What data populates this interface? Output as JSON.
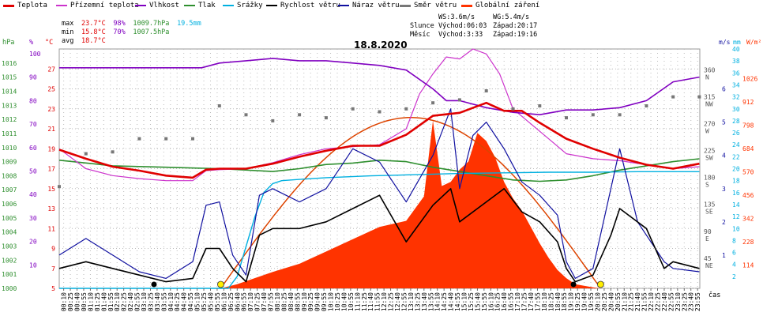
{
  "legend": [
    {
      "label": "Teplota",
      "color": "#e00000"
    },
    {
      "label": "Přízemní teplota",
      "color": "#cc33cc"
    },
    {
      "label": "Vlhkost",
      "color": "#8000c0"
    },
    {
      "label": "Tlak",
      "color": "#2f8f2f"
    },
    {
      "label": "Srážky",
      "color": "#00b0e0"
    },
    {
      "label": "Rychlost větru",
      "color": "#000000"
    },
    {
      "label": "Náraz větru",
      "color": "#1010a0"
    },
    {
      "label": "Směr větru",
      "color": "#777777"
    },
    {
      "label": "Globální záření",
      "color": "#ff3300"
    }
  ],
  "stats": {
    "max_label": "max",
    "max_temp": "23.7°C",
    "max_hum": "98%",
    "max_press": "1009.7hPa",
    "max_rain": "19.5mm",
    "min_label": "min",
    "min_temp": "15.8°C",
    "min_hum": "70%",
    "min_press": "1007.5hPa",
    "avg_label": "avg",
    "avg_temp": "18.7°C"
  },
  "info": {
    "ws": "WS:3.6m/s",
    "wg": "WG:5.4m/s",
    "sun_label": "Slunce",
    "sun_rise": "Východ:06:03",
    "sun_set": "Západ:20:17",
    "moon_label": "Měsíc",
    "moon_rise": "Východ:3:33",
    "moon_set": "Západ:19:16"
  },
  "title": "18.8.2020",
  "axis_headers": {
    "hpa": "hPa",
    "pct": "%",
    "degc": "°C",
    "ms": "m/s",
    "mm": "mm",
    "wm2": "W/m²",
    "time": "čas"
  },
  "colors": {
    "axis_hpa": "#2f8f2f",
    "axis_pct": "#8000c0",
    "axis_degc": "#e00000",
    "axis_ms": "#1010a0",
    "axis_mm": "#00b0e0",
    "axis_wm2": "#ff3300",
    "grid": "#bbbbbb"
  },
  "chart_data": {
    "type": "line",
    "title": "18.8.2020",
    "x_unit": "minutes since 00:00",
    "x_ticks": [
      "00:10",
      "00:25",
      "00:40",
      "00:55",
      "01:10",
      "01:25",
      "01:40",
      "01:55",
      "02:10",
      "02:25",
      "02:40",
      "02:55",
      "03:10",
      "03:25",
      "03:40",
      "03:55",
      "04:10",
      "04:25",
      "04:40",
      "04:55",
      "05:10",
      "05:25",
      "05:40",
      "05:55",
      "06:10",
      "06:25",
      "06:40",
      "06:55",
      "07:10",
      "07:25",
      "07:40",
      "07:55",
      "08:10",
      "08:25",
      "08:40",
      "08:55",
      "09:10",
      "09:25",
      "09:40",
      "09:55",
      "10:10",
      "10:25",
      "10:40",
      "10:55",
      "11:10",
      "11:25",
      "11:40",
      "11:55",
      "12:10",
      "12:25",
      "12:40",
      "12:55",
      "13:10",
      "13:25",
      "13:40",
      "13:55",
      "14:10",
      "14:25",
      "14:40",
      "14:55",
      "15:10",
      "15:25",
      "15:40",
      "15:55",
      "16:10",
      "16:25",
      "16:40",
      "16:55",
      "17:10",
      "17:25",
      "17:40",
      "17:55",
      "18:10",
      "18:25",
      "18:40",
      "18:55",
      "19:10",
      "19:25",
      "19:40",
      "19:55",
      "20:10",
      "20:25",
      "20:40",
      "20:55",
      "21:10",
      "21:25",
      "21:40",
      "21:55",
      "22:10",
      "22:25",
      "22:40",
      "22:55",
      "23:10",
      "23:25",
      "23:40",
      "23:55"
    ],
    "axes": {
      "hpa": {
        "range": [
          1000,
          1017
        ],
        "ticks": [
          1000,
          1001,
          1002,
          1003,
          1004,
          1005,
          1006,
          1007,
          1008,
          1009,
          1010,
          1011,
          1012,
          1013,
          1014,
          1015,
          1016
        ]
      },
      "pct": {
        "range": [
          0,
          102
        ],
        "ticks": [
          10,
          20,
          30,
          40,
          50,
          60,
          70,
          80,
          90,
          100
        ]
      },
      "degc": {
        "range": [
          5,
          29
        ],
        "ticks": [
          5,
          7,
          9,
          11,
          13,
          15,
          17,
          19,
          21,
          23,
          25,
          27
        ]
      },
      "dir": {
        "range": [
          0,
          400
        ],
        "ticks": [
          {
            "v": 45,
            "l": "45",
            "c": "NE"
          },
          {
            "v": 90,
            "l": "90",
            "c": "E"
          },
          {
            "v": 135,
            "l": "135",
            "c": "SE"
          },
          {
            "v": 180,
            "l": "180",
            "c": "S"
          },
          {
            "v": 225,
            "l": "225",
            "c": "SW"
          },
          {
            "v": 270,
            "l": "270",
            "c": "W"
          },
          {
            "v": 315,
            "l": "315",
            "c": "NW"
          },
          {
            "v": 360,
            "l": "360",
            "c": "N"
          }
        ]
      },
      "ms": {
        "range": [
          0,
          7.2
        ],
        "ticks": [
          1,
          2,
          3,
          4,
          5,
          6
        ]
      },
      "mm": {
        "range": [
          0,
          40
        ],
        "ticks": [
          2,
          4,
          6,
          8,
          10,
          12,
          14,
          16,
          18,
          20,
          22,
          24,
          26,
          28,
          30,
          32,
          34,
          36,
          38,
          40
        ]
      },
      "wm2": {
        "range": [
          0,
          1170
        ],
        "ticks": [
          114,
          228,
          342,
          456,
          570,
          684,
          798,
          912,
          1026
        ]
      }
    },
    "series": [
      {
        "name": "Teplota",
        "axis": "degc",
        "x": [
          0,
          60,
          120,
          180,
          240,
          300,
          330,
          360,
          420,
          480,
          540,
          600,
          660,
          720,
          780,
          840,
          900,
          960,
          1000,
          1040,
          1080,
          1140,
          1200,
          1260,
          1320,
          1380,
          1439
        ],
        "y": [
          18.9,
          18.0,
          17.2,
          16.8,
          16.3,
          16.1,
          16.9,
          17.0,
          17.0,
          17.5,
          18.2,
          18.8,
          19.3,
          19.3,
          20.4,
          22.3,
          22.6,
          23.6,
          22.8,
          22.8,
          21.6,
          20.0,
          19.0,
          18.1,
          17.4,
          17.0,
          17.5
        ]
      },
      {
        "name": "Přízemní teplota",
        "axis": "degc",
        "x": [
          0,
          60,
          120,
          180,
          240,
          300,
          330,
          360,
          420,
          480,
          540,
          600,
          660,
          720,
          780,
          810,
          840,
          870,
          900,
          930,
          960,
          990,
          1020,
          1060,
          1100,
          1140,
          1200,
          1260,
          1320,
          1380,
          1439
        ],
        "y": [
          19.0,
          17.0,
          16.3,
          16.0,
          15.8,
          15.8,
          16.8,
          16.9,
          17.0,
          17.6,
          18.4,
          19.0,
          19.2,
          19.4,
          21.0,
          24.5,
          26.5,
          28.2,
          28.0,
          29.0,
          28.5,
          26.5,
          23.0,
          21.5,
          20.0,
          18.5,
          18.0,
          17.8,
          17.4,
          17.0,
          17.2
        ]
      },
      {
        "name": "Vlhkost",
        "axis": "pct",
        "x": [
          0,
          120,
          240,
          320,
          360,
          420,
          480,
          540,
          600,
          660,
          720,
          780,
          840,
          870,
          900,
          960,
          1020,
          1080,
          1140,
          1200,
          1260,
          1320,
          1380,
          1439
        ],
        "y": [
          94,
          94,
          94,
          94,
          96,
          97,
          98,
          97,
          97,
          96,
          95,
          93,
          85,
          80,
          80,
          77,
          75,
          74,
          76,
          76,
          77,
          80,
          88,
          90
        ]
      },
      {
        "name": "Tlak",
        "axis": "hpa",
        "x": [
          0,
          120,
          240,
          360,
          480,
          540,
          600,
          660,
          720,
          780,
          840,
          900,
          960,
          1020,
          1080,
          1140,
          1200,
          1260,
          1320,
          1380,
          1439
        ],
        "y": [
          1009.1,
          1008.7,
          1008.6,
          1008.5,
          1008.3,
          1008.5,
          1008.8,
          1008.9,
          1009.1,
          1009.0,
          1008.6,
          1008.3,
          1008.0,
          1007.7,
          1007.6,
          1007.7,
          1008.0,
          1008.4,
          1008.7,
          1009.0,
          1009.2
        ]
      },
      {
        "name": "Srážky",
        "axis": "mm",
        "x": [
          0,
          380,
          400,
          420,
          440,
          460,
          480,
          500,
          540,
          600,
          700,
          800,
          900,
          1000,
          1100,
          1200,
          1300,
          1439
        ],
        "y": [
          0,
          0,
          2,
          7,
          12,
          16,
          17.5,
          18,
          18.2,
          18.5,
          18.8,
          19.0,
          19.2,
          19.3,
          19.4,
          19.4,
          19.5,
          19.5
        ]
      },
      {
        "name": "Globální záření",
        "axis": "wm2",
        "x": [
          363,
          400,
          480,
          540,
          600,
          660,
          720,
          780,
          820,
          840,
          860,
          880,
          900,
          920,
          940,
          960,
          980,
          1000,
          1020,
          1040,
          1060,
          1080,
          1100,
          1120,
          1140,
          1160,
          1200,
          1217
        ],
        "y": [
          0,
          20,
          80,
          120,
          180,
          240,
          300,
          330,
          450,
          820,
          500,
          520,
          580,
          620,
          760,
          720,
          640,
          520,
          440,
          380,
          300,
          220,
          150,
          90,
          50,
          20,
          5,
          0
        ]
      },
      {
        "name": "Rychlost větru",
        "axis": "ms",
        "x": [
          0,
          60,
          120,
          180,
          240,
          300,
          330,
          360,
          390,
          420,
          450,
          480,
          540,
          600,
          660,
          720,
          780,
          840,
          880,
          900,
          960,
          1000,
          1040,
          1080,
          1120,
          1140,
          1160,
          1200,
          1240,
          1260,
          1320,
          1360,
          1380,
          1439
        ],
        "y": [
          0.6,
          0.8,
          0.6,
          0.4,
          0.2,
          0.3,
          1.2,
          1.2,
          0.6,
          0.2,
          1.6,
          1.8,
          1.8,
          2.0,
          2.4,
          2.8,
          1.4,
          2.5,
          3.0,
          2.0,
          2.6,
          3.0,
          2.3,
          2.0,
          1.4,
          0.6,
          0.2,
          0.4,
          1.6,
          2.4,
          1.8,
          0.6,
          0.8,
          0.6
        ]
      },
      {
        "name": "Náraz větru",
        "axis": "ms",
        "x": [
          0,
          60,
          120,
          180,
          240,
          300,
          330,
          360,
          390,
          420,
          450,
          480,
          540,
          600,
          660,
          720,
          780,
          840,
          880,
          900,
          930,
          960,
          1000,
          1040,
          1080,
          1120,
          1140,
          1160,
          1200,
          1240,
          1260,
          1300,
          1320,
          1360,
          1380,
          1439
        ],
        "y": [
          1.0,
          1.5,
          1.0,
          0.5,
          0.3,
          0.8,
          2.5,
          2.6,
          1.0,
          0.4,
          2.8,
          3.0,
          2.6,
          3.0,
          4.2,
          3.8,
          2.6,
          4.0,
          5.4,
          3.0,
          4.6,
          5.0,
          4.2,
          3.2,
          2.8,
          2.2,
          0.8,
          0.3,
          0.6,
          3.0,
          4.2,
          2.0,
          1.6,
          0.8,
          0.6,
          0.5
        ]
      },
      {
        "name": "Směr větru",
        "axis": "dir",
        "x": [
          0,
          60,
          120,
          180,
          240,
          300,
          360,
          420,
          480,
          540,
          600,
          660,
          720,
          780,
          840,
          900,
          960,
          1020,
          1080,
          1140,
          1200,
          1260,
          1320,
          1380,
          1439
        ],
        "y": [
          170,
          225,
          228,
          250,
          250,
          250,
          305,
          290,
          280,
          290,
          285,
          300,
          295,
          300,
          310,
          315,
          330,
          300,
          305,
          285,
          290,
          290,
          305,
          320,
          320
        ]
      }
    ],
    "sun_markers": [
      {
        "label": "sunrise",
        "x": 363
      },
      {
        "label": "sunset",
        "x": 1217
      }
    ],
    "moon_markers": [
      {
        "label": "moonrise",
        "x": 213
      },
      {
        "label": "moonset",
        "x": 1156
      }
    ],
    "ylabel_left": "hPa",
    "ylabel_right": "W/m²",
    "xlabel": "čas"
  }
}
